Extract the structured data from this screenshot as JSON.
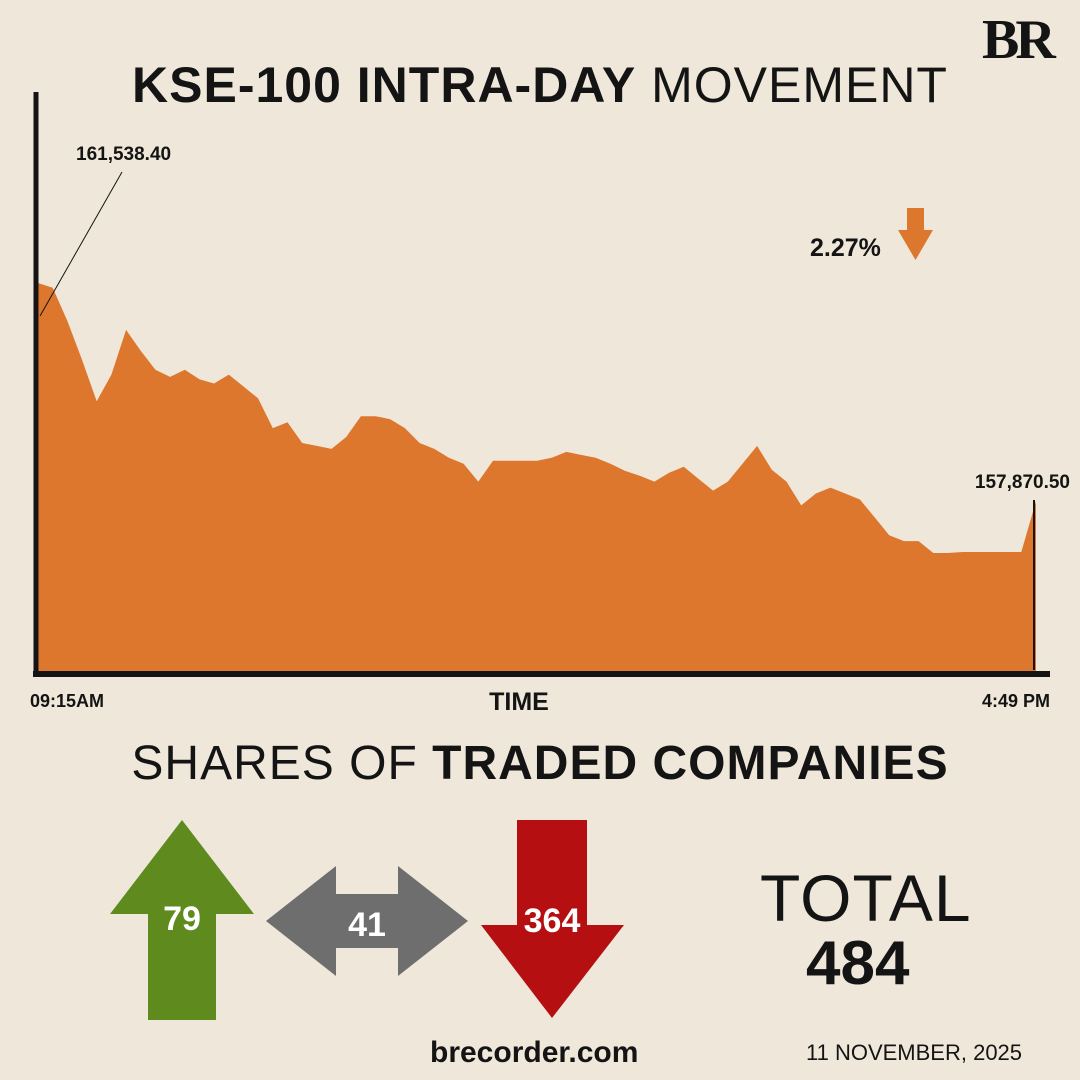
{
  "logo": "BR",
  "title": {
    "bold": "KSE-100 INTRA-DAY",
    "light": " MOVEMENT"
  },
  "chart_data": {
    "type": "area",
    "title": "KSE-100 INTRA-DAY MOVEMENT",
    "xlabel": "TIME",
    "ylabel": "",
    "x_start_label": "09:15AM",
    "x_end_label": "4:49 PM",
    "start_value": 161538.4,
    "start_value_label": "161,538.40",
    "end_value": 157870.5,
    "end_value_label": "157,870.50",
    "change_label": "2.27%",
    "change_direction": "down",
    "ylim": [
      155000,
      164750
    ],
    "values": [
      161538.4,
      161460,
      160900,
      160250,
      159550,
      160000,
      160750,
      160400,
      160080,
      159960,
      160080,
      159920,
      159850,
      160000,
      159800,
      159600,
      159100,
      159200,
      158850,
      158800,
      158750,
      158950,
      159300,
      159300,
      159250,
      159100,
      158850,
      158750,
      158600,
      158500,
      158200,
      158550,
      158550,
      158550,
      158550,
      158600,
      158700,
      158650,
      158600,
      158500,
      158380,
      158300,
      158200,
      158350,
      158450,
      158250,
      158050,
      158200,
      158500,
      158800,
      158400,
      158200,
      157800,
      158000,
      158100,
      158000,
      157900,
      157600,
      157300,
      157200,
      157200,
      157000,
      157000,
      157018,
      157018,
      157018,
      157018,
      157018,
      157870.5
    ],
    "series_color": "#dd772e",
    "grid": false
  },
  "shares": {
    "title_light": "SHARES OF ",
    "title_bold": "TRADED COMPANIES",
    "up": {
      "value": "79",
      "color": "#5e8a1e"
    },
    "unchanged": {
      "value": "41",
      "color": "#6e6e6e"
    },
    "down": {
      "value": "364",
      "color": "#b50f12"
    },
    "total_label": "TOTAL",
    "total_value": "484"
  },
  "website": "brecorder.com",
  "date": "11 NOVEMBER, 2025"
}
